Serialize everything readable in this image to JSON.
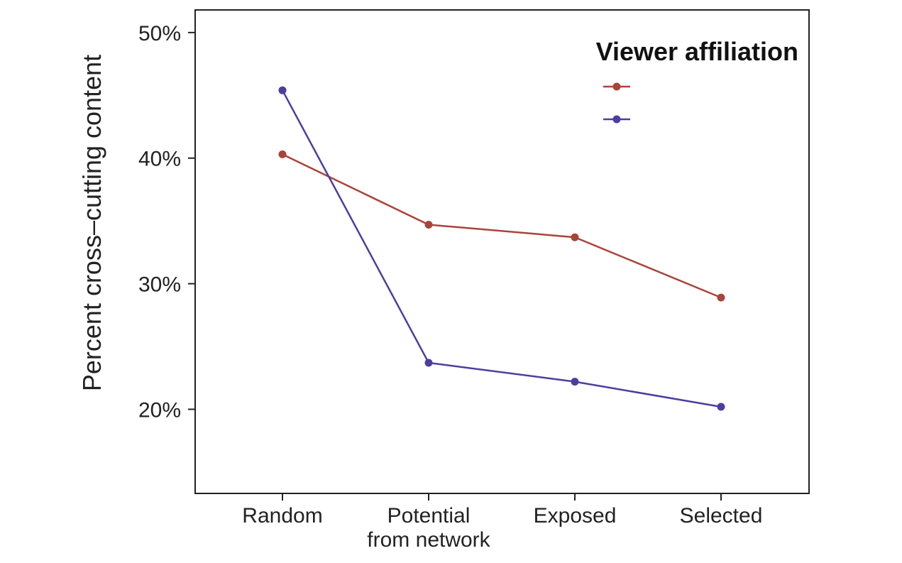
{
  "chart_data": {
    "type": "line",
    "title": "",
    "xlabel": "",
    "ylabel": "Percent cross–cutting content",
    "categories": [
      [
        "Random"
      ],
      [
        "Potential",
        "from network"
      ],
      [
        "Exposed"
      ],
      [
        "Selected"
      ]
    ],
    "yticks": [
      20,
      30,
      40,
      50
    ],
    "ytick_labels": [
      "20%",
      "30%",
      "40%",
      "50%"
    ],
    "ylim": [
      13.3,
      51.8
    ],
    "grid": false,
    "legend": {
      "title": "Viewer affiliation",
      "position": "top-right"
    },
    "series": [
      {
        "values": [
          40.3,
          34.7,
          33.7,
          28.9
        ],
        "color": "#a9443a"
      },
      {
        "values": [
          45.4,
          23.7,
          22.2,
          20.2
        ],
        "color": "#4a3fa0"
      }
    ]
  }
}
